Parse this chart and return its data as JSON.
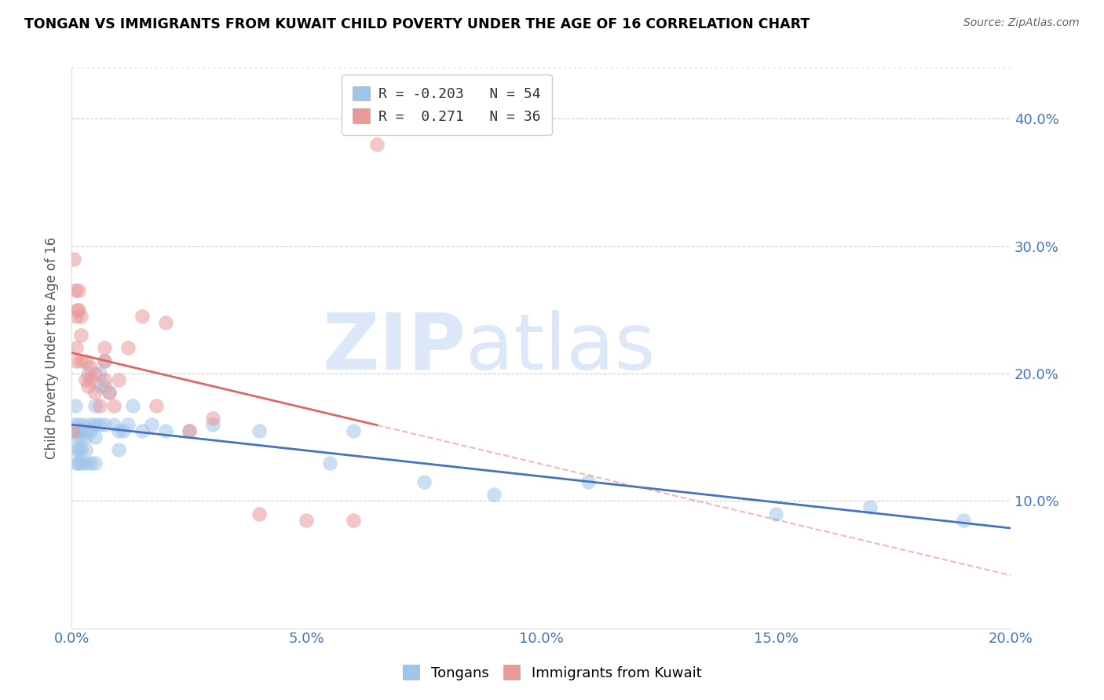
{
  "title": "TONGAN VS IMMIGRANTS FROM KUWAIT CHILD POVERTY UNDER THE AGE OF 16 CORRELATION CHART",
  "source": "Source: ZipAtlas.com",
  "xlabel_ticks": [
    "0.0%",
    "5.0%",
    "10.0%",
    "15.0%",
    "20.0%"
  ],
  "xlabel_vals": [
    0.0,
    0.05,
    0.1,
    0.15,
    0.2
  ],
  "ylabel_ticks": [
    "10.0%",
    "20.0%",
    "30.0%",
    "40.0%"
  ],
  "ylabel_vals": [
    0.1,
    0.2,
    0.3,
    0.4
  ],
  "ylabel_label": "Child Poverty Under the Age of 16",
  "xlim": [
    0.0,
    0.2
  ],
  "ylim": [
    0.0,
    0.44
  ],
  "tongan_R": -0.203,
  "tongan_N": 54,
  "kuwait_R": 0.271,
  "kuwait_N": 36,
  "tongans_x": [
    0.0005,
    0.0005,
    0.0008,
    0.001,
    0.001,
    0.001,
    0.0012,
    0.0015,
    0.0015,
    0.0015,
    0.002,
    0.002,
    0.002,
    0.002,
    0.0025,
    0.003,
    0.003,
    0.003,
    0.003,
    0.0035,
    0.004,
    0.004,
    0.004,
    0.005,
    0.005,
    0.005,
    0.005,
    0.006,
    0.006,
    0.006,
    0.007,
    0.007,
    0.007,
    0.008,
    0.009,
    0.01,
    0.01,
    0.011,
    0.012,
    0.013,
    0.015,
    0.017,
    0.02,
    0.025,
    0.03,
    0.04,
    0.055,
    0.06,
    0.075,
    0.09,
    0.11,
    0.15,
    0.17,
    0.19
  ],
  "tongans_y": [
    0.155,
    0.16,
    0.175,
    0.15,
    0.14,
    0.13,
    0.155,
    0.16,
    0.14,
    0.13,
    0.155,
    0.15,
    0.14,
    0.13,
    0.16,
    0.155,
    0.15,
    0.14,
    0.13,
    0.2,
    0.16,
    0.155,
    0.13,
    0.175,
    0.16,
    0.15,
    0.13,
    0.2,
    0.19,
    0.16,
    0.21,
    0.19,
    0.16,
    0.185,
    0.16,
    0.155,
    0.14,
    0.155,
    0.16,
    0.175,
    0.155,
    0.16,
    0.155,
    0.155,
    0.16,
    0.155,
    0.13,
    0.155,
    0.115,
    0.105,
    0.115,
    0.09,
    0.095,
    0.085
  ],
  "kuwait_x": [
    0.0003,
    0.0005,
    0.0008,
    0.001,
    0.001,
    0.001,
    0.0012,
    0.0015,
    0.0015,
    0.002,
    0.002,
    0.002,
    0.003,
    0.003,
    0.0035,
    0.004,
    0.004,
    0.005,
    0.005,
    0.006,
    0.007,
    0.007,
    0.007,
    0.008,
    0.009,
    0.01,
    0.012,
    0.015,
    0.018,
    0.02,
    0.025,
    0.03,
    0.04,
    0.05,
    0.06,
    0.065
  ],
  "kuwait_y": [
    0.155,
    0.29,
    0.265,
    0.245,
    0.22,
    0.21,
    0.25,
    0.265,
    0.25,
    0.245,
    0.23,
    0.21,
    0.21,
    0.195,
    0.19,
    0.205,
    0.195,
    0.2,
    0.185,
    0.175,
    0.195,
    0.22,
    0.21,
    0.185,
    0.175,
    0.195,
    0.22,
    0.245,
    0.175,
    0.24,
    0.155,
    0.165,
    0.09,
    0.085,
    0.085,
    0.38
  ],
  "blue_color": "#a4c2e8",
  "pink_color": "#f4a7b2",
  "blue_line_color": "#4472c4",
  "pink_line_color": "#e06666",
  "blue_scatter_color": "#9fc5e8",
  "pink_scatter_color": "#ea9999",
  "watermark_zip": "ZIP",
  "watermark_atlas": "atlas",
  "watermark_color": "#dce8f8",
  "grid_color": "#cccccc",
  "tick_color": "#4472c4",
  "legend1_label_r": "R = -0.203",
  "legend1_label_n": "N = 54",
  "legend2_label_r": "R =  0.271",
  "legend2_label_n": "N = 36"
}
